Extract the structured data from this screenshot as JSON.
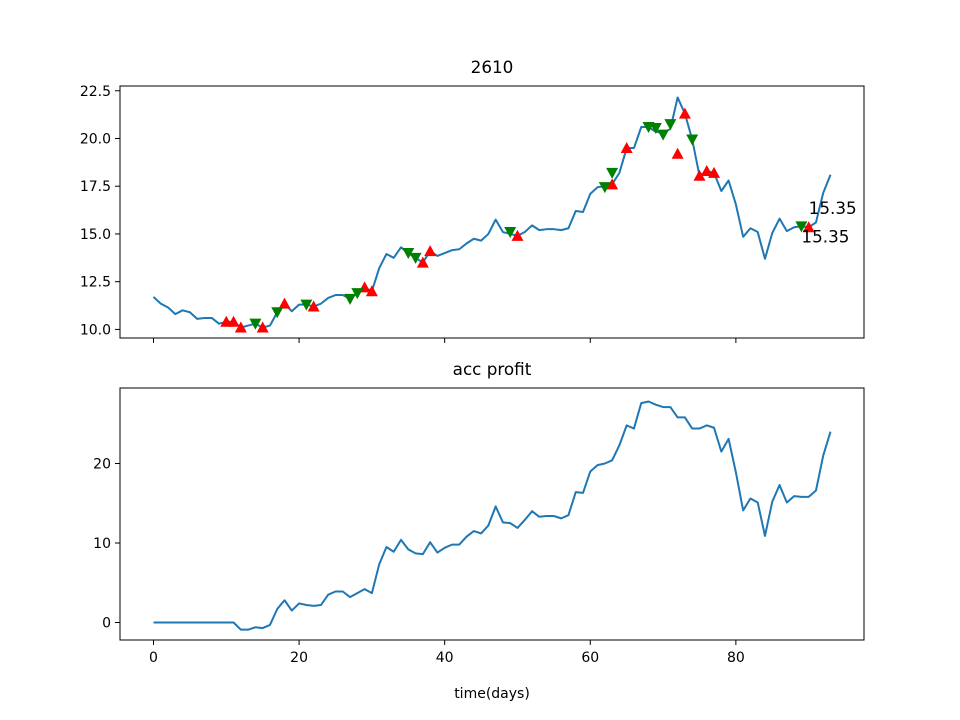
{
  "chart_data": [
    {
      "type": "line",
      "title": "2610",
      "xlabel": "",
      "ylabel": "",
      "xlim": [
        -4.6,
        97.6
      ],
      "ylim": [
        9.55,
        22.75
      ],
      "x_ticks": [
        0,
        20,
        40,
        60,
        80
      ],
      "x_tick_labels": [
        "",
        "",
        "",
        "",
        ""
      ],
      "y_ticks": [
        10.0,
        12.5,
        15.0,
        17.5,
        20.0,
        22.5
      ],
      "y_tick_labels": [
        "10.0",
        "12.5",
        "15.0",
        "17.5",
        "20.0",
        "22.5"
      ],
      "series": [
        {
          "color": "#1f77b4",
          "x": [
            0,
            1,
            2,
            3,
            4,
            5,
            6,
            7,
            8,
            9,
            10,
            11,
            12,
            13,
            14,
            15,
            16,
            17,
            18,
            19,
            20,
            21,
            22,
            23,
            24,
            25,
            26,
            27,
            28,
            29,
            30,
            31,
            32,
            33,
            34,
            35,
            36,
            37,
            38,
            39,
            40,
            41,
            42,
            43,
            44,
            45,
            46,
            47,
            48,
            49,
            50,
            51,
            52,
            53,
            54,
            55,
            56,
            57,
            58,
            59,
            60,
            61,
            62,
            63,
            64,
            65,
            66,
            67,
            68,
            69,
            70,
            71,
            72,
            73,
            74,
            75,
            76,
            77,
            78,
            79,
            80,
            81,
            82,
            83,
            84,
            85,
            86,
            87,
            88,
            89,
            90,
            91,
            92,
            93
          ],
          "values": [
            11.7,
            11.35,
            11.15,
            10.8,
            11.0,
            10.9,
            10.55,
            10.6,
            10.6,
            10.3,
            10.4,
            10.4,
            10.1,
            10.2,
            10.3,
            10.1,
            10.2,
            10.9,
            11.35,
            10.95,
            11.3,
            11.3,
            11.2,
            11.35,
            11.65,
            11.8,
            11.8,
            11.6,
            11.9,
            12.2,
            12.0,
            13.2,
            13.95,
            13.75,
            14.3,
            14.0,
            13.75,
            13.5,
            14.1,
            13.85,
            14.0,
            14.15,
            14.2,
            14.5,
            14.75,
            14.65,
            15.0,
            15.75,
            15.1,
            15.0,
            14.9,
            15.1,
            15.45,
            15.2,
            15.25,
            15.25,
            15.2,
            15.3,
            16.2,
            16.15,
            17.1,
            17.45,
            17.5,
            17.6,
            18.2,
            19.5,
            19.5,
            20.6,
            20.6,
            20.35,
            20.3,
            20.5,
            22.15,
            21.3,
            19.95,
            18.05,
            18.3,
            18.2,
            17.25,
            17.8,
            16.55,
            14.85,
            15.3,
            15.1,
            13.7,
            15.05,
            15.8,
            15.15,
            15.35,
            15.4,
            15.35,
            15.6,
            17.15,
            18.1
          ]
        }
      ],
      "buy_markers": {
        "color": "#ff0000",
        "x": [
          10,
          11,
          12,
          15,
          18,
          22,
          29,
          30,
          37,
          38,
          50,
          63,
          65,
          72,
          73,
          75,
          76,
          77,
          90
        ],
        "values": [
          10.4,
          10.4,
          10.1,
          10.1,
          11.35,
          11.2,
          12.2,
          12.0,
          13.5,
          14.1,
          14.9,
          17.6,
          19.5,
          19.2,
          21.3,
          18.05,
          18.3,
          18.2,
          15.35
        ]
      },
      "sell_markers": {
        "color": "#008000",
        "x": [
          14,
          17,
          21,
          27,
          28,
          35,
          36,
          49,
          62,
          63,
          68,
          69,
          70,
          71,
          74,
          89
        ],
        "values": [
          10.3,
          10.9,
          11.3,
          11.6,
          11.9,
          14.0,
          13.75,
          15.1,
          17.45,
          18.2,
          20.6,
          20.55,
          20.2,
          20.75,
          19.95,
          15.4
        ]
      },
      "annotations": [
        {
          "text": "15.35",
          "color": "#ff0000",
          "x": 90,
          "y": 16.05
        },
        {
          "text": "15.35",
          "color": "#008000",
          "x": 89,
          "y": 14.55
        }
      ]
    },
    {
      "type": "line",
      "title": "acc profit",
      "xlabel": "time(days)",
      "ylabel": "",
      "xlim": [
        -4.6,
        97.6
      ],
      "ylim": [
        -2.2,
        29.5
      ],
      "x_ticks": [
        0,
        20,
        40,
        60,
        80
      ],
      "x_tick_labels": [
        "0",
        "20",
        "40",
        "60",
        "80"
      ],
      "y_ticks": [
        0,
        10,
        20
      ],
      "y_tick_labels": [
        "0",
        "10",
        "20"
      ],
      "series": [
        {
          "color": "#1f77b4",
          "x": [
            0,
            1,
            2,
            3,
            4,
            5,
            6,
            7,
            8,
            9,
            10,
            11,
            12,
            13,
            14,
            15,
            16,
            17,
            18,
            19,
            20,
            21,
            22,
            23,
            24,
            25,
            26,
            27,
            28,
            29,
            30,
            31,
            32,
            33,
            34,
            35,
            36,
            37,
            38,
            39,
            40,
            41,
            42,
            43,
            44,
            45,
            46,
            47,
            48,
            49,
            50,
            51,
            52,
            53,
            54,
            55,
            56,
            57,
            58,
            59,
            60,
            61,
            62,
            63,
            64,
            65,
            66,
            67,
            68,
            69,
            70,
            71,
            72,
            73,
            74,
            75,
            76,
            77,
            78,
            79,
            80,
            81,
            82,
            83,
            84,
            85,
            86,
            87,
            88,
            89,
            90,
            91,
            92,
            93
          ],
          "values": [
            0,
            0,
            0,
            0,
            0,
            0,
            0,
            0,
            0,
            0,
            0,
            0,
            -0.9,
            -0.9,
            -0.6,
            -0.7,
            -0.3,
            1.7,
            2.8,
            1.5,
            2.4,
            2.2,
            2.1,
            2.2,
            3.5,
            3.9,
            3.9,
            3.2,
            3.7,
            4.2,
            3.7,
            7.3,
            9.5,
            8.9,
            10.4,
            9.2,
            8.7,
            8.6,
            10.1,
            8.8,
            9.4,
            9.8,
            9.8,
            10.8,
            11.5,
            11.2,
            12.2,
            14.6,
            12.6,
            12.5,
            11.9,
            12.9,
            14.0,
            13.3,
            13.4,
            13.4,
            13.1,
            13.5,
            16.4,
            16.3,
            19.0,
            19.8,
            20.0,
            20.4,
            22.3,
            24.8,
            24.4,
            27.6,
            27.8,
            27.4,
            27.1,
            27.1,
            25.8,
            25.8,
            24.4,
            24.4,
            24.8,
            24.5,
            21.5,
            23.1,
            18.9,
            14.1,
            15.6,
            15.1,
            10.9,
            15.2,
            17.3,
            15.1,
            15.9,
            15.8,
            15.8,
            16.6,
            21.0,
            24.0
          ]
        }
      ]
    }
  ]
}
